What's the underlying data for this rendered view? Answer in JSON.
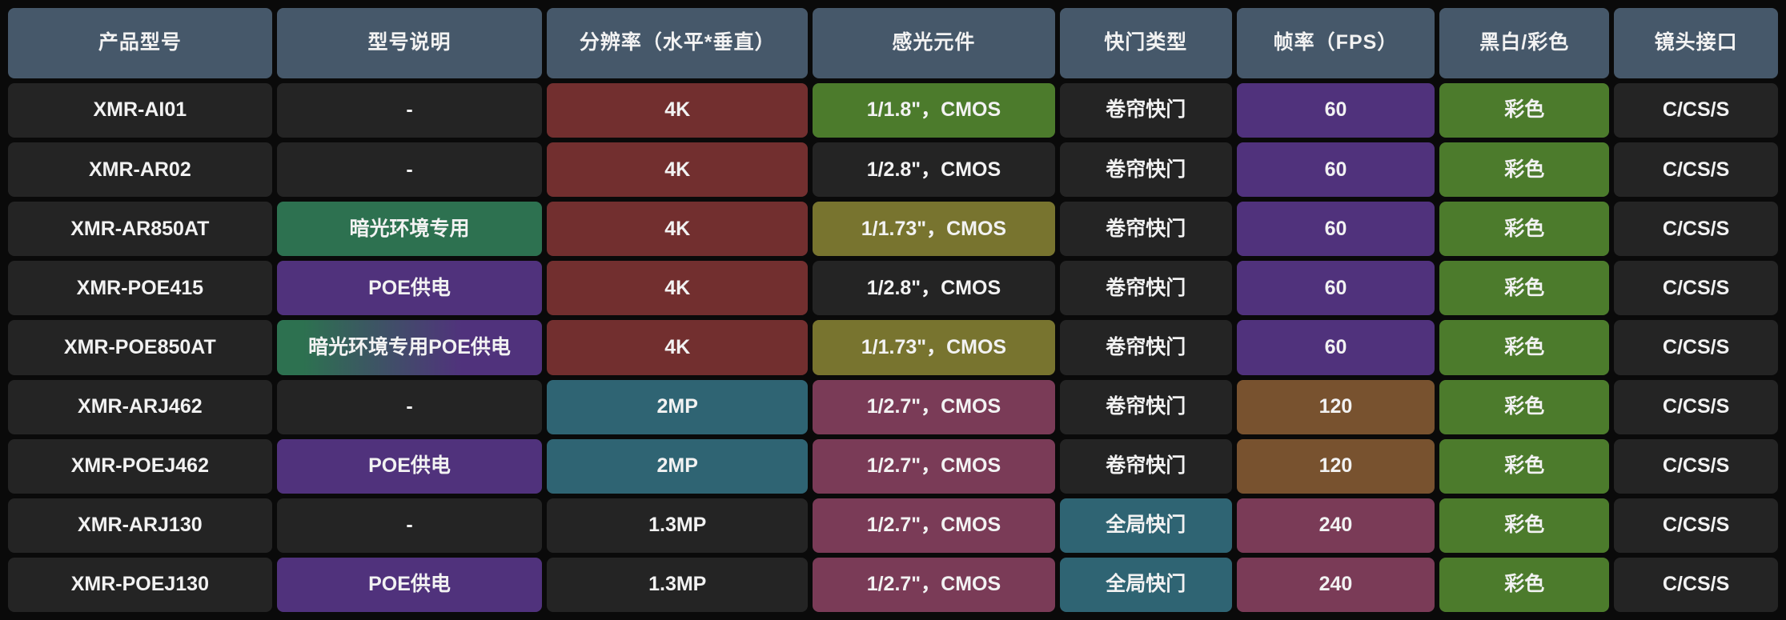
{
  "palette": {
    "header": "#46586A",
    "dark": "#242424",
    "red": "#722F2F",
    "green": "#4C7B2C",
    "olive": "#78742F",
    "maroon": "#7A3B57",
    "teal": "#2F6473",
    "purple": "#50327C",
    "brown": "#78522F",
    "tealgreen": "#2D7150",
    "gradient": "linear-gradient(90deg, #2D7150 10%, #50327C 70%)",
    "background": "#0A0A0A",
    "text": "#F2F2F2"
  },
  "table": {
    "columns": [
      {
        "key": "model",
        "label": "产品型号"
      },
      {
        "key": "model-desc",
        "label": "型号说明"
      },
      {
        "key": "resolution",
        "label": "分辨率（水平*垂直）"
      },
      {
        "key": "sensor",
        "label": "感光元件"
      },
      {
        "key": "shutter",
        "label": "快门类型"
      },
      {
        "key": "fps",
        "label": "帧率（FPS）"
      },
      {
        "key": "color-mode",
        "label": "黑白/彩色"
      },
      {
        "key": "lens-mount",
        "label": "镜头接口"
      }
    ],
    "rows": [
      {
        "cells": [
          {
            "text": "XMR-AI01",
            "bg": "dark"
          },
          {
            "text": "-",
            "bg": "dark"
          },
          {
            "text": "4K",
            "bg": "red"
          },
          {
            "text": "1/1.8\"，CMOS",
            "bg": "green"
          },
          {
            "text": "卷帘快门",
            "bg": "dark"
          },
          {
            "text": "60",
            "bg": "purple"
          },
          {
            "text": "彩色",
            "bg": "green"
          },
          {
            "text": "C/CS/S",
            "bg": "dark"
          }
        ]
      },
      {
        "cells": [
          {
            "text": "XMR-AR02",
            "bg": "dark"
          },
          {
            "text": "-",
            "bg": "dark"
          },
          {
            "text": "4K",
            "bg": "red"
          },
          {
            "text": "1/2.8\"，CMOS",
            "bg": "dark"
          },
          {
            "text": "卷帘快门",
            "bg": "dark"
          },
          {
            "text": "60",
            "bg": "purple"
          },
          {
            "text": "彩色",
            "bg": "green"
          },
          {
            "text": "C/CS/S",
            "bg": "dark"
          }
        ]
      },
      {
        "cells": [
          {
            "text": "XMR-AR850AT",
            "bg": "dark"
          },
          {
            "text": "暗光环境专用",
            "bg": "tealgreen"
          },
          {
            "text": "4K",
            "bg": "red"
          },
          {
            "text": "1/1.73\"，CMOS",
            "bg": "olive"
          },
          {
            "text": "卷帘快门",
            "bg": "dark"
          },
          {
            "text": "60",
            "bg": "purple"
          },
          {
            "text": "彩色",
            "bg": "green"
          },
          {
            "text": "C/CS/S",
            "bg": "dark"
          }
        ]
      },
      {
        "cells": [
          {
            "text": "XMR-POE415",
            "bg": "dark"
          },
          {
            "text": "POE供电",
            "bg": "purple"
          },
          {
            "text": "4K",
            "bg": "red"
          },
          {
            "text": "1/2.8\"，CMOS",
            "bg": "dark"
          },
          {
            "text": "卷帘快门",
            "bg": "dark"
          },
          {
            "text": "60",
            "bg": "purple"
          },
          {
            "text": "彩色",
            "bg": "green"
          },
          {
            "text": "C/CS/S",
            "bg": "dark"
          }
        ]
      },
      {
        "cells": [
          {
            "text": "XMR-POE850AT",
            "bg": "dark"
          },
          {
            "text": "暗光环境专用POE供电",
            "bg": "gradient"
          },
          {
            "text": "4K",
            "bg": "red"
          },
          {
            "text": "1/1.73\"，CMOS",
            "bg": "olive"
          },
          {
            "text": "卷帘快门",
            "bg": "dark"
          },
          {
            "text": "60",
            "bg": "purple"
          },
          {
            "text": "彩色",
            "bg": "green"
          },
          {
            "text": "C/CS/S",
            "bg": "dark"
          }
        ]
      },
      {
        "cells": [
          {
            "text": "XMR-ARJ462",
            "bg": "dark"
          },
          {
            "text": "-",
            "bg": "dark"
          },
          {
            "text": "2MP",
            "bg": "teal"
          },
          {
            "text": "1/2.7\"，CMOS",
            "bg": "maroon"
          },
          {
            "text": "卷帘快门",
            "bg": "dark"
          },
          {
            "text": "120",
            "bg": "brown"
          },
          {
            "text": "彩色",
            "bg": "green"
          },
          {
            "text": "C/CS/S",
            "bg": "dark"
          }
        ]
      },
      {
        "cells": [
          {
            "text": "XMR-POEJ462",
            "bg": "dark"
          },
          {
            "text": "POE供电",
            "bg": "purple"
          },
          {
            "text": "2MP",
            "bg": "teal"
          },
          {
            "text": "1/2.7\"，CMOS",
            "bg": "maroon"
          },
          {
            "text": "卷帘快门",
            "bg": "dark"
          },
          {
            "text": "120",
            "bg": "brown"
          },
          {
            "text": "彩色",
            "bg": "green"
          },
          {
            "text": "C/CS/S",
            "bg": "dark"
          }
        ]
      },
      {
        "cells": [
          {
            "text": "XMR-ARJ130",
            "bg": "dark"
          },
          {
            "text": "-",
            "bg": "dark"
          },
          {
            "text": "1.3MP",
            "bg": "dark"
          },
          {
            "text": "1/2.7\"，CMOS",
            "bg": "maroon"
          },
          {
            "text": "全局快门",
            "bg": "teal"
          },
          {
            "text": "240",
            "bg": "maroon"
          },
          {
            "text": "彩色",
            "bg": "green"
          },
          {
            "text": "C/CS/S",
            "bg": "dark"
          }
        ]
      },
      {
        "cells": [
          {
            "text": "XMR-POEJ130",
            "bg": "dark"
          },
          {
            "text": "POE供电",
            "bg": "purple"
          },
          {
            "text": "1.3MP",
            "bg": "dark"
          },
          {
            "text": "1/2.7\"，CMOS",
            "bg": "maroon"
          },
          {
            "text": "全局快门",
            "bg": "teal"
          },
          {
            "text": "240",
            "bg": "maroon"
          },
          {
            "text": "彩色",
            "bg": "green"
          },
          {
            "text": "C/CS/S",
            "bg": "dark"
          }
        ]
      }
    ]
  },
  "chart_data": {
    "type": "table",
    "title": "",
    "columns": [
      "产品型号",
      "型号说明",
      "分辨率（水平*垂直）",
      "感光元件",
      "快门类型",
      "帧率（FPS）",
      "黑白/彩色",
      "镜头接口"
    ],
    "rows": [
      [
        "XMR-AI01",
        "-",
        "4K",
        "1/1.8\"，CMOS",
        "卷帘快门",
        "60",
        "彩色",
        "C/CS/S"
      ],
      [
        "XMR-AR02",
        "-",
        "4K",
        "1/2.8\"，CMOS",
        "卷帘快门",
        "60",
        "彩色",
        "C/CS/S"
      ],
      [
        "XMR-AR850AT",
        "暗光环境专用",
        "4K",
        "1/1.73\"，CMOS",
        "卷帘快门",
        "60",
        "彩色",
        "C/CS/S"
      ],
      [
        "XMR-POE415",
        "POE供电",
        "4K",
        "1/2.8\"，CMOS",
        "卷帘快门",
        "60",
        "彩色",
        "C/CS/S"
      ],
      [
        "XMR-POE850AT",
        "暗光环境专用POE供电",
        "4K",
        "1/1.73\"，CMOS",
        "卷帘快门",
        "60",
        "彩色",
        "C/CS/S"
      ],
      [
        "XMR-ARJ462",
        "-",
        "2MP",
        "1/2.7\"，CMOS",
        "卷帘快门",
        "120",
        "彩色",
        "C/CS/S"
      ],
      [
        "XMR-POEJ462",
        "POE供电",
        "2MP",
        "1/2.7\"，CMOS",
        "卷帘快门",
        "120",
        "彩色",
        "C/CS/S"
      ],
      [
        "XMR-ARJ130",
        "-",
        "1.3MP",
        "1/2.7\"，CMOS",
        "全局快门",
        "240",
        "彩色",
        "C/CS/S"
      ],
      [
        "XMR-POEJ130",
        "POE供电",
        "1.3MP",
        "1/2.7\"，CMOS",
        "全局快门",
        "240",
        "彩色",
        "C/CS/S"
      ]
    ]
  }
}
